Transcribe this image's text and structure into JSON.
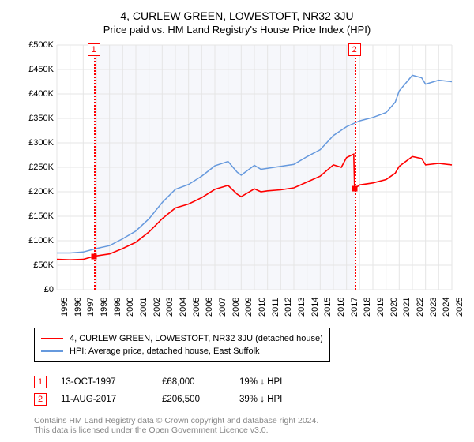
{
  "title": "4, CURLEW GREEN, LOWESTOFT, NR32 3JU",
  "subtitle": "Price paid vs. HM Land Registry's House Price Index (HPI)",
  "chart": {
    "type": "line",
    "background_color": "#ffffff",
    "shade_color": "#f6f7fb",
    "grid_color": "#e5e5e5",
    "x_years": [
      1995,
      1996,
      1997,
      1998,
      1999,
      2000,
      2001,
      2002,
      2003,
      2004,
      2005,
      2006,
      2007,
      2008,
      2009,
      2010,
      2011,
      2012,
      2013,
      2014,
      2015,
      2016,
      2017,
      2018,
      2019,
      2020,
      2021,
      2022,
      2023,
      2024,
      2025
    ],
    "y_max": 500000,
    "y_step": 50000,
    "y_prefix": "£",
    "y_suffix": "K",
    "shade_from_year": 1997.8,
    "shade_to_year": 2017.6,
    "markers": [
      {
        "n": "1",
        "year": 1997.8,
        "red_value": 68000
      },
      {
        "n": "2",
        "year": 2017.6,
        "red_value": 206500,
        "drop_to": 206500,
        "pre_value": 277000
      }
    ],
    "series": [
      {
        "name": "red",
        "color": "#ff0000",
        "line_width": 1.6,
        "legend": "4, CURLEW GREEN, LOWESTOFT, NR32 3JU (detached house)",
        "points": [
          [
            1995,
            62000
          ],
          [
            1996,
            61000
          ],
          [
            1997,
            62000
          ],
          [
            1997.8,
            68000
          ],
          [
            1998,
            69000
          ],
          [
            1999,
            73000
          ],
          [
            2000,
            84000
          ],
          [
            2001,
            97000
          ],
          [
            2002,
            118000
          ],
          [
            2003,
            145000
          ],
          [
            2004,
            167000
          ],
          [
            2005,
            175000
          ],
          [
            2006,
            188000
          ],
          [
            2007,
            205000
          ],
          [
            2008,
            213000
          ],
          [
            2008.7,
            195000
          ],
          [
            2009,
            190000
          ],
          [
            2010,
            206000
          ],
          [
            2010.5,
            200000
          ],
          [
            2011,
            202000
          ],
          [
            2012,
            204000
          ],
          [
            2013,
            208000
          ],
          [
            2014,
            220000
          ],
          [
            2015,
            232000
          ],
          [
            2016,
            255000
          ],
          [
            2016.6,
            250000
          ],
          [
            2017,
            270000
          ],
          [
            2017.55,
            277000
          ],
          [
            2017.61,
            206500
          ],
          [
            2018,
            214000
          ],
          [
            2019,
            218000
          ],
          [
            2020,
            225000
          ],
          [
            2020.7,
            238000
          ],
          [
            2021,
            252000
          ],
          [
            2022,
            272000
          ],
          [
            2022.7,
            268000
          ],
          [
            2023,
            255000
          ],
          [
            2024,
            258000
          ],
          [
            2025,
            255000
          ]
        ]
      },
      {
        "name": "blue",
        "color": "#6699dd",
        "line_width": 1.5,
        "legend": "HPI: Average price, detached house, East Suffolk",
        "points": [
          [
            1995,
            75000
          ],
          [
            1996,
            75000
          ],
          [
            1997,
            77000
          ],
          [
            1998,
            84000
          ],
          [
            1999,
            90000
          ],
          [
            2000,
            104000
          ],
          [
            2001,
            120000
          ],
          [
            2002,
            145000
          ],
          [
            2003,
            178000
          ],
          [
            2004,
            205000
          ],
          [
            2005,
            215000
          ],
          [
            2006,
            232000
          ],
          [
            2007,
            253000
          ],
          [
            2008,
            262000
          ],
          [
            2008.7,
            240000
          ],
          [
            2009,
            234000
          ],
          [
            2010,
            254000
          ],
          [
            2010.5,
            246000
          ],
          [
            2011,
            248000
          ],
          [
            2012,
            252000
          ],
          [
            2013,
            256000
          ],
          [
            2014,
            272000
          ],
          [
            2015,
            286000
          ],
          [
            2016,
            315000
          ],
          [
            2017,
            333000
          ],
          [
            2018,
            345000
          ],
          [
            2019,
            352000
          ],
          [
            2020,
            362000
          ],
          [
            2020.7,
            383000
          ],
          [
            2021,
            406000
          ],
          [
            2022,
            438000
          ],
          [
            2022.7,
            433000
          ],
          [
            2023,
            420000
          ],
          [
            2024,
            428000
          ],
          [
            2025,
            425000
          ]
        ]
      }
    ]
  },
  "refs": [
    {
      "n": "1",
      "date": "13-OCT-1997",
      "price": "£68,000",
      "diff": "19% ↓ HPI"
    },
    {
      "n": "2",
      "date": "11-AUG-2017",
      "price": "£206,500",
      "diff": "39% ↓ HPI"
    }
  ],
  "attribution": {
    "line1": "Contains HM Land Registry data © Crown copyright and database right 2024.",
    "line2": "This data is licensed under the Open Government Licence v3.0."
  }
}
